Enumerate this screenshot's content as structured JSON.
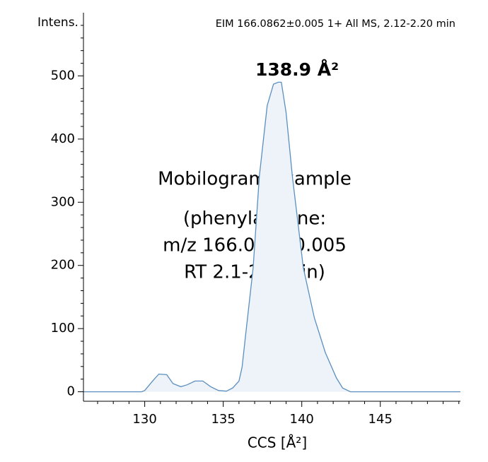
{
  "chart_data": {
    "type": "line",
    "title": "EIM 166.0862±0.005 1+ All MS, 2.12-2.20 min",
    "y_label": "Intens.",
    "x_label": "CCS [Å²]",
    "peak_label": "138.9 Å²",
    "annotation": [
      "Mobilogram example",
      "(phenylalanine:",
      "m/z 166.086±0.005",
      "RT 2.1-2.2 min)"
    ],
    "x": [
      126.1,
      129.8,
      130.0,
      130.5,
      130.9,
      131.4,
      131.8,
      132.3,
      132.7,
      133.2,
      133.7,
      134.2,
      134.7,
      135.2,
      135.6,
      136.0,
      136.2,
      136.4,
      136.9,
      137.3,
      137.8,
      138.2,
      138.5,
      138.7,
      139.0,
      139.4,
      140.1,
      140.8,
      141.5,
      142.2,
      142.6,
      143.1,
      150.1
    ],
    "series": [
      {
        "name": "EIM",
        "color": "#5b8fc0",
        "fill": "#edf3f9",
        "values": [
          0,
          0,
          2,
          17,
          28,
          27,
          13,
          8,
          11,
          17,
          17,
          8,
          2,
          1,
          6,
          17,
          39,
          84,
          196,
          341,
          453,
          487,
          490,
          490,
          442,
          341,
          196,
          117,
          62,
          22,
          6,
          0,
          0
        ]
      }
    ],
    "xlim": [
      126.1,
      150.1
    ],
    "ylim": [
      -15,
      600
    ],
    "xticks": [
      130,
      135,
      140,
      145
    ],
    "yticks": [
      0,
      100,
      200,
      300,
      400,
      500
    ],
    "xminorticks": [
      127,
      128,
      129,
      131,
      132,
      133,
      134,
      136,
      137,
      138,
      139,
      141,
      142,
      143,
      144,
      146,
      147,
      148,
      149,
      150
    ],
    "yminorticks": [
      20,
      40,
      60,
      80,
      120,
      140,
      160,
      180,
      220,
      240,
      260,
      280,
      320,
      340,
      360,
      380,
      420,
      440,
      460,
      480,
      520,
      540,
      560,
      580
    ]
  }
}
